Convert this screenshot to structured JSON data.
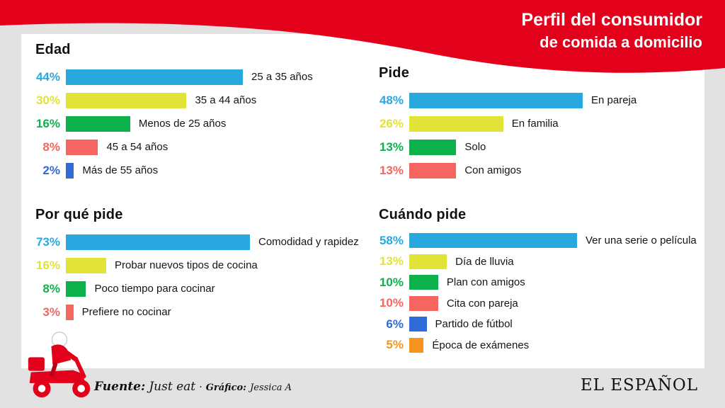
{
  "header": {
    "title_line1": "Perfil del consumidor",
    "title_line2": "de comida a domicilio",
    "band_color": "#e2001a"
  },
  "colors": {
    "band_red": "#e2001a",
    "blue": "#29a8e0",
    "yellow": "#e1e336",
    "green": "#0db14b",
    "salmon": "#f4665f",
    "royal_blue": "#2e6bd6",
    "orange": "#f7941d",
    "background": "#e2e2e2",
    "card": "#ffffff"
  },
  "chart_data": [
    {
      "type": "bar",
      "orientation": "horizontal",
      "title": "Edad",
      "categories": [
        "25 a 35 años",
        "35 a 44 años",
        "Menos de 25 años",
        "45 a 54 años",
        "Más de 55 años"
      ],
      "values": [
        44,
        30,
        16,
        8,
        2
      ],
      "value_labels": [
        "44%",
        "30%",
        "16%",
        "8%",
        "2%"
      ],
      "colors": [
        "#29a8e0",
        "#e1e336",
        "#0db14b",
        "#f4665f",
        "#2e6bd6"
      ],
      "xlim": [
        0,
        100
      ],
      "legend": "none",
      "grid": false
    },
    {
      "type": "bar",
      "orientation": "horizontal",
      "title": "Pide",
      "categories": [
        "En pareja",
        "En familia",
        "Solo",
        "Con amigos"
      ],
      "values": [
        48,
        26,
        13,
        13
      ],
      "value_labels": [
        "48%",
        "26%",
        "13%",
        "13%"
      ],
      "colors": [
        "#29a8e0",
        "#e1e336",
        "#0db14b",
        "#f4665f"
      ],
      "xlim": [
        0,
        100
      ],
      "legend": "none",
      "grid": false
    },
    {
      "type": "bar",
      "orientation": "horizontal",
      "title": "Por qué pide",
      "categories": [
        "Comodidad y rapidez",
        "Probar nuevos tipos de cocina",
        "Poco tiempo para cocinar",
        "Prefiere no cocinar"
      ],
      "values": [
        73,
        16,
        8,
        3
      ],
      "value_labels": [
        "73%",
        "16%",
        "8%",
        "3%"
      ],
      "colors": [
        "#29a8e0",
        "#e1e336",
        "#0db14b",
        "#f4665f"
      ],
      "xlim": [
        0,
        100
      ],
      "legend": "none",
      "grid": false
    },
    {
      "type": "bar",
      "orientation": "horizontal",
      "title": "Cuándo pide",
      "categories": [
        "Ver una serie o película",
        "Día de lluvia",
        "Plan con amigos",
        "Cita con pareja",
        "Partido de fútbol",
        "Época de exámenes"
      ],
      "values": [
        58,
        13,
        10,
        10,
        6,
        5
      ],
      "value_labels": [
        "58%",
        "13%",
        "10%",
        "10%",
        "6%",
        "5%"
      ],
      "colors": [
        "#29a8e0",
        "#e1e336",
        "#0db14b",
        "#f4665f",
        "#2e6bd6",
        "#f7941d"
      ],
      "xlim": [
        0,
        100
      ],
      "legend": "none",
      "grid": false
    }
  ],
  "footer": {
    "source_label": "Fuente:",
    "source_value": "Just eat",
    "separator": "·",
    "credit_label": "Gráfico:",
    "credit_value": "Jessica A",
    "brand": "EL ESPAÑOL"
  },
  "icons": {
    "scooter": "delivery-scooter-icon"
  }
}
